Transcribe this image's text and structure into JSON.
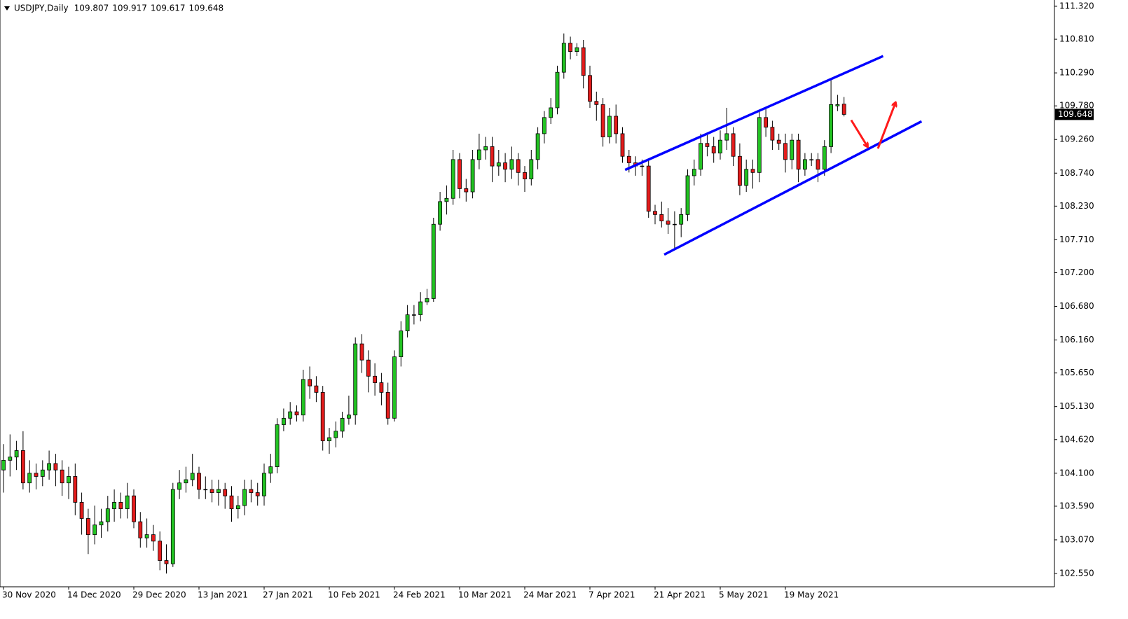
{
  "chart_data": {
    "type": "candlestick",
    "title": "USDJPY,Daily",
    "categories": [
      "30 Nov 2020",
      null,
      null,
      null,
      null,
      null,
      null,
      null,
      null,
      null,
      "14 Dec 2020",
      null,
      null,
      null,
      null,
      null,
      null,
      null,
      null,
      null,
      "29 Dec 2020",
      null,
      null,
      null,
      null,
      null,
      null,
      null,
      null,
      null,
      "13 Jan 2021",
      null,
      null,
      null,
      null,
      null,
      null,
      null,
      null,
      null,
      "27 Jan 2021",
      null,
      null,
      null,
      null,
      null,
      null,
      null,
      null,
      null,
      "10 Feb 2021",
      null,
      null,
      null,
      null,
      null,
      null,
      null,
      null,
      null,
      "24 Feb 2021",
      null,
      null,
      null,
      null,
      null,
      null,
      null,
      null,
      null,
      "10 Mar 2021",
      null,
      null,
      null,
      null,
      null,
      null,
      null,
      null,
      null,
      "24 Mar 2021",
      null,
      null,
      null,
      null,
      null,
      null,
      null,
      null,
      null,
      "7 Apr 2021",
      null,
      null,
      null,
      null,
      null,
      null,
      null,
      null,
      null,
      "21 Apr 2021",
      null,
      null,
      null,
      null,
      null,
      null,
      null,
      null,
      null,
      "5 May 2021",
      null,
      null,
      null,
      null,
      null,
      null,
      null,
      null,
      null,
      "19 May 2021",
      null,
      null,
      null,
      null,
      null,
      null,
      null,
      null,
      null
    ],
    "open": [
      104.15,
      104.3,
      104.35,
      104.45,
      103.95,
      104.1,
      104.05,
      104.15,
      104.25,
      104.15,
      103.95,
      104.05,
      103.65,
      103.4,
      103.15,
      103.3,
      103.35,
      103.55,
      103.65,
      103.55,
      103.75,
      103.35,
      103.1,
      103.15,
      103.05,
      102.75,
      102.7,
      103.85,
      103.95,
      104.0,
      104.1,
      103.85,
      103.85,
      103.8,
      103.85,
      103.75,
      103.55,
      103.6,
      103.85,
      103.8,
      103.75,
      104.1,
      104.2,
      104.85,
      104.95,
      105.05,
      105.0,
      105.55,
      105.45,
      105.35,
      104.6,
      104.65,
      104.75,
      104.95,
      105.0,
      106.1,
      105.85,
      105.6,
      105.5,
      105.35,
      104.95,
      105.9,
      106.3,
      106.55,
      106.55,
      106.75,
      106.8,
      107.95,
      108.3,
      108.35,
      108.95,
      108.5,
      108.45,
      108.95,
      109.1,
      109.15,
      108.85,
      108.9,
      108.8,
      108.95,
      108.75,
      108.65,
      108.95,
      109.35,
      109.6,
      109.75,
      110.3,
      110.75,
      110.62,
      110.68,
      110.25,
      109.85,
      109.8,
      109.3,
      109.62,
      109.35,
      109.0,
      108.9,
      108.85,
      108.85,
      108.15,
      108.1,
      108.0,
      107.95,
      107.95,
      108.1,
      108.7,
      108.8,
      109.2,
      109.15,
      109.05,
      109.25,
      109.35,
      109.0,
      108.55,
      108.8,
      108.75,
      109.6,
      109.45,
      109.25,
      109.2,
      108.95,
      109.25,
      108.8,
      108.95,
      108.95,
      108.8,
      109.15,
      109.78,
      109.807
    ],
    "high": [
      104.55,
      104.7,
      104.6,
      104.75,
      104.3,
      104.25,
      104.3,
      104.45,
      104.4,
      104.3,
      104.2,
      104.25,
      103.8,
      103.55,
      103.6,
      103.55,
      103.75,
      103.85,
      103.8,
      103.95,
      103.85,
      103.5,
      103.4,
      103.3,
      103.2,
      103.0,
      103.95,
      104.15,
      104.2,
      104.4,
      104.2,
      104.05,
      104.0,
      104.0,
      103.95,
      103.9,
      103.75,
      104.0,
      104.0,
      103.95,
      104.25,
      104.4,
      104.95,
      105.1,
      105.2,
      105.15,
      105.7,
      105.75,
      105.6,
      105.45,
      104.8,
      104.9,
      105.05,
      105.3,
      106.2,
      106.25,
      106.0,
      105.8,
      105.65,
      105.5,
      106.0,
      106.45,
      106.7,
      106.7,
      106.9,
      106.95,
      108.05,
      108.45,
      108.55,
      109.1,
      109.05,
      108.65,
      109.1,
      109.35,
      109.3,
      109.3,
      109.1,
      109.05,
      109.15,
      109.05,
      108.85,
      109.1,
      109.45,
      109.7,
      109.9,
      110.4,
      110.9,
      110.85,
      110.75,
      110.8,
      110.4,
      110.0,
      109.9,
      109.75,
      109.8,
      109.45,
      109.1,
      109.0,
      108.95,
      108.95,
      108.25,
      108.3,
      108.2,
      108.15,
      108.2,
      108.8,
      108.95,
      109.35,
      109.35,
      109.3,
      109.4,
      109.75,
      109.45,
      109.2,
      108.95,
      108.95,
      109.7,
      109.75,
      109.55,
      109.35,
      109.35,
      109.35,
      109.35,
      109.05,
      109.05,
      109.05,
      109.25,
      110.2,
      109.95,
      109.917
    ],
    "low": [
      103.8,
      104.05,
      104.15,
      103.85,
      103.8,
      103.85,
      103.9,
      104.0,
      103.9,
      103.75,
      103.7,
      103.45,
      103.15,
      102.85,
      103.0,
      103.1,
      103.2,
      103.35,
      103.4,
      103.4,
      103.25,
      102.95,
      102.95,
      102.9,
      102.6,
      102.55,
      102.65,
      103.7,
      103.8,
      103.9,
      103.7,
      103.7,
      103.65,
      103.6,
      103.55,
      103.35,
      103.4,
      103.45,
      103.65,
      103.6,
      103.6,
      103.95,
      104.1,
      104.75,
      104.85,
      104.9,
      104.9,
      105.25,
      105.2,
      104.45,
      104.4,
      104.5,
      104.65,
      104.85,
      104.85,
      105.65,
      105.35,
      105.3,
      105.15,
      104.85,
      104.9,
      105.75,
      106.2,
      106.4,
      106.45,
      106.7,
      106.75,
      107.85,
      108.1,
      108.25,
      108.35,
      108.3,
      108.35,
      108.8,
      108.95,
      108.6,
      108.7,
      108.6,
      108.65,
      108.55,
      108.45,
      108.55,
      108.8,
      109.2,
      109.5,
      109.65,
      110.2,
      110.5,
      110.55,
      110.05,
      109.75,
      109.55,
      109.15,
      109.2,
      109.2,
      108.9,
      108.75,
      108.7,
      108.7,
      108.05,
      107.95,
      107.9,
      107.8,
      107.55,
      107.75,
      108.0,
      108.55,
      108.7,
      109.0,
      108.9,
      108.95,
      109.1,
      108.85,
      108.4,
      108.45,
      108.5,
      108.6,
      109.3,
      109.1,
      109.1,
      108.75,
      108.8,
      108.6,
      108.7,
      108.85,
      108.6,
      108.7,
      109.05,
      109.7,
      109.617
    ],
    "close": [
      104.3,
      104.35,
      104.45,
      103.95,
      104.1,
      104.05,
      104.15,
      104.25,
      104.15,
      103.95,
      104.05,
      103.65,
      103.4,
      103.15,
      103.3,
      103.35,
      103.55,
      103.65,
      103.55,
      103.75,
      103.35,
      103.1,
      103.15,
      103.05,
      102.75,
      102.7,
      103.85,
      103.95,
      104.0,
      104.1,
      103.85,
      103.85,
      103.8,
      103.85,
      103.75,
      103.55,
      103.6,
      103.85,
      103.8,
      103.75,
      104.1,
      104.2,
      104.85,
      104.95,
      105.05,
      105.0,
      105.55,
      105.45,
      105.35,
      104.6,
      104.65,
      104.75,
      104.95,
      105.0,
      106.1,
      105.85,
      105.6,
      105.5,
      105.35,
      104.95,
      105.9,
      106.3,
      106.55,
      106.55,
      106.75,
      106.8,
      107.95,
      108.3,
      108.35,
      108.95,
      108.5,
      108.45,
      108.95,
      109.1,
      109.15,
      108.85,
      108.9,
      108.8,
      108.95,
      108.75,
      108.65,
      108.95,
      109.35,
      109.6,
      109.75,
      110.3,
      110.75,
      110.62,
      110.68,
      110.25,
      109.85,
      109.8,
      109.3,
      109.62,
      109.35,
      109.0,
      108.9,
      108.85,
      108.85,
      108.15,
      108.1,
      108.0,
      107.95,
      107.95,
      108.1,
      108.7,
      108.8,
      109.2,
      109.15,
      109.05,
      109.25,
      109.35,
      109.0,
      108.55,
      108.8,
      108.75,
      109.6,
      109.45,
      109.25,
      109.2,
      108.95,
      109.25,
      108.8,
      108.95,
      108.95,
      108.8,
      109.15,
      109.8,
      109.8,
      109.648
    ],
    "up_color": "#22c322",
    "down_color": "#e41c1c",
    "ylim": [
      102.344,
      111.417
    ],
    "yticks": [
      {
        "value": 102.55,
        "label": "102.550"
      },
      {
        "value": 103.07,
        "label": "103.070"
      },
      {
        "value": 103.59,
        "label": "103.590"
      },
      {
        "value": 104.1,
        "label": "104.100"
      },
      {
        "value": 104.62,
        "label": "104.620"
      },
      {
        "value": 105.13,
        "label": "105.130"
      },
      {
        "value": 105.65,
        "label": "105.650"
      },
      {
        "value": 106.16,
        "label": "106.160"
      },
      {
        "value": 106.68,
        "label": "106.680"
      },
      {
        "value": 107.2,
        "label": "107.200"
      },
      {
        "value": 107.71,
        "label": "107.710"
      },
      {
        "value": 108.23,
        "label": "108.230"
      },
      {
        "value": 108.74,
        "label": "108.740"
      },
      {
        "value": 109.26,
        "label": "109.260"
      },
      {
        "value": 109.78,
        "label": "109.780"
      },
      {
        "value": 110.29,
        "label": "110.290"
      },
      {
        "value": 110.81,
        "label": "110.810"
      },
      {
        "value": 111.32,
        "label": "111.320"
      }
    ],
    "grid": false,
    "annotations": [
      {
        "type": "trendline",
        "color": "#0000ff",
        "x": [
          95.4,
          135
        ],
        "y": [
          108.79,
          110.55
        ]
      },
      {
        "type": "trendline",
        "color": "#0000ff",
        "x": [
          101.4,
          140.9
        ],
        "y": [
          107.48,
          109.54
        ]
      },
      {
        "type": "arrow",
        "color": "#ff1a1a",
        "x": [
          130.1,
          132.6
        ],
        "y": [
          109.56,
          109.15
        ]
      },
      {
        "type": "arrow",
        "color": "#ff1a1a",
        "x": [
          134.2,
          136.9
        ],
        "y": [
          109.12,
          109.83
        ]
      }
    ]
  }
}
